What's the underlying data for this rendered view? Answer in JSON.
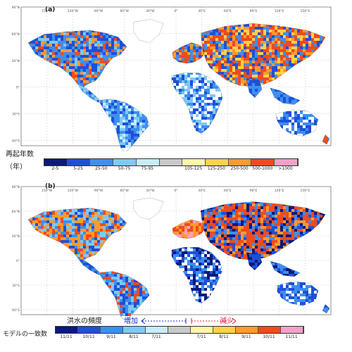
{
  "panels": [
    {
      "id": "a",
      "label": "(a)",
      "lon_labels": [
        "150°W",
        "120°W",
        "90°W",
        "60°W",
        "30°W",
        "0°",
        "30°E",
        "60°E",
        "90°E",
        "120°E",
        "150°E"
      ],
      "lat_labels": [
        "90°N",
        "60°N",
        "30°N",
        "0°",
        "30°S",
        "60°S"
      ]
    },
    {
      "id": "b",
      "label": "(b)",
      "lon_labels": [
        "150°W",
        "120°W",
        "90°W",
        "60°W",
        "30°W",
        "0°",
        "30°E",
        "60°E",
        "90°E",
        "120°E",
        "150°E"
      ],
      "lat_labels": [
        "90°N",
        "60°N",
        "30°N",
        "0°",
        "30°S",
        "60°S"
      ]
    }
  ],
  "colorbar_a": {
    "title_line1": "再起年数",
    "title_line2": "（年）",
    "colors": [
      "#0a1a7a",
      "#1f4fd8",
      "#3d8ff0",
      "#7ec9f5",
      "#c8ecf8",
      "#c9c9c9",
      "#fff6a8",
      "#ffd24a",
      "#ff9a2e",
      "#f04a1e",
      "#f5a0c8"
    ],
    "labels": [
      "2-5",
      "5-25",
      "25-50",
      "50-75",
      "75-95",
      "",
      "105-125",
      "125-250",
      "250-500",
      "500-1000",
      ">1000"
    ]
  },
  "colorbar_b": {
    "title": "モデルの一致数",
    "colors": [
      "#0a1a7a",
      "#1f4fd8",
      "#3d8ff0",
      "#7ec9f5",
      "#c8ecf8",
      "#c9c9c9",
      "#fff6a8",
      "#ffd24a",
      "#ff9a2e",
      "#f04a1e",
      "#f5a0c8"
    ],
    "labels": [
      "11/11",
      "10/11",
      "9/11",
      "8/11",
      "7/11",
      "",
      "7/11",
      "8/11",
      "9/11",
      "10/11",
      "11/11"
    ]
  },
  "annotations": {
    "freq_label": "洪水の頻度",
    "increase": "増加",
    "decrease": "減少",
    "increase_color": "#1a2fd0",
    "decrease_color": "#e0203a"
  }
}
